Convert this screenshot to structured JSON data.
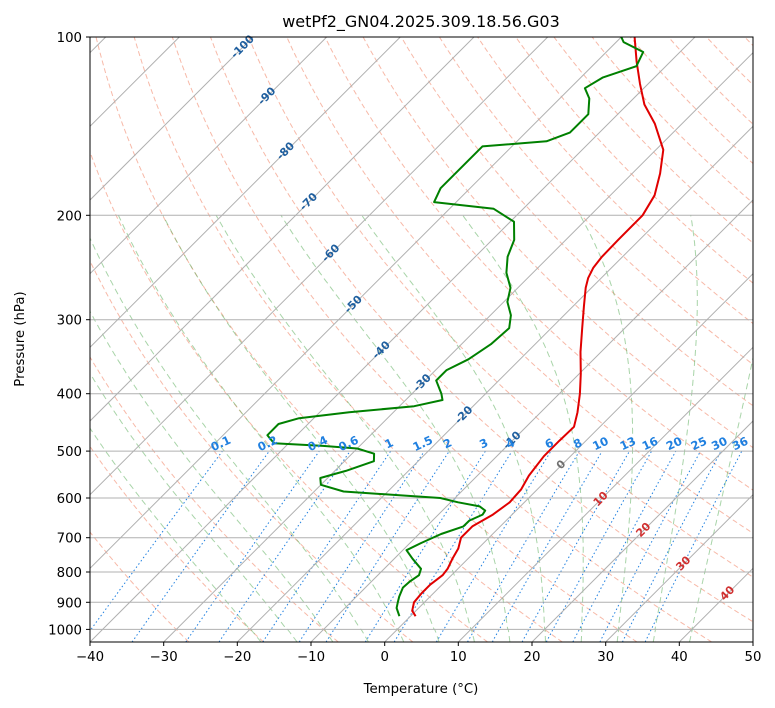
{
  "chart_data": {
    "type": "line",
    "subtype": "skew-T log-P diagram",
    "title": "wetPf2_GN04.2025.309.18.56.G03",
    "xlabel": "Temperature (°C)",
    "ylabel": "Pressure (hPa)",
    "xlim": [
      -40,
      50
    ],
    "ylim": [
      1050,
      100
    ],
    "y_scale": "log",
    "x_ticks": [
      -40,
      -30,
      -20,
      -10,
      0,
      10,
      20,
      30,
      40,
      50
    ],
    "y_ticks": [
      100,
      200,
      300,
      400,
      500,
      600,
      700,
      800,
      900,
      1000
    ],
    "grid": true,
    "legend": "none",
    "colors": {
      "temperature": "#e00000",
      "dewpoint": "#008000",
      "dry_adiabat": "#f08060",
      "moist_adiabat": "#60b060",
      "mixing_ratio": "#2080e0",
      "isotherm": "#808080",
      "grid": "#b0b0b0",
      "isotherm_label_neg": "#1f5f9f",
      "isotherm_label_pos": "#d03030",
      "isotherm_label_zero": "#707070"
    },
    "series": [
      {
        "label": "temperature",
        "points": [
          {
            "p": 950,
            "t": 0.7
          },
          {
            "p": 930,
            "t": -0.5
          },
          {
            "p": 900,
            "t": -1.4
          },
          {
            "p": 870,
            "t": -1.6
          },
          {
            "p": 840,
            "t": -1.6
          },
          {
            "p": 810,
            "t": -1.2
          },
          {
            "p": 790,
            "t": -1.4
          },
          {
            "p": 760,
            "t": -2.1
          },
          {
            "p": 730,
            "t": -2.7
          },
          {
            "p": 700,
            "t": -3.8
          },
          {
            "p": 670,
            "t": -3.8
          },
          {
            "p": 640,
            "t": -2.6
          },
          {
            "p": 610,
            "t": -2.0
          },
          {
            "p": 580,
            "t": -2.2
          },
          {
            "p": 550,
            "t": -3.0
          },
          {
            "p": 510,
            "t": -3.6
          },
          {
            "p": 480,
            "t": -3.6
          },
          {
            "p": 455,
            "t": -3.5
          },
          {
            "p": 430,
            "t": -5.0
          },
          {
            "p": 400,
            "t": -7.2
          },
          {
            "p": 370,
            "t": -9.8
          },
          {
            "p": 340,
            "t": -12.8
          },
          {
            "p": 310,
            "t": -15.8
          },
          {
            "p": 285,
            "t": -18.5
          },
          {
            "p": 265,
            "t": -20.8
          },
          {
            "p": 255,
            "t": -21.8
          },
          {
            "p": 245,
            "t": -22.5
          },
          {
            "p": 235,
            "t": -22.8
          },
          {
            "p": 220,
            "t": -22.9
          },
          {
            "p": 200,
            "t": -22.9
          },
          {
            "p": 185,
            "t": -24.0
          },
          {
            "p": 170,
            "t": -26.2
          },
          {
            "p": 155,
            "t": -29.0
          },
          {
            "p": 140,
            "t": -33.7
          },
          {
            "p": 130,
            "t": -37.7
          },
          {
            "p": 120,
            "t": -41.1
          },
          {
            "p": 110,
            "t": -44.6
          },
          {
            "p": 100,
            "t": -48.2
          }
        ]
      },
      {
        "label": "dewpoint",
        "points": [
          {
            "p": 950,
            "t": -1.5
          },
          {
            "p": 920,
            "t": -3.0
          },
          {
            "p": 900,
            "t": -3.6
          },
          {
            "p": 880,
            "t": -4.2
          },
          {
            "p": 850,
            "t": -4.9
          },
          {
            "p": 830,
            "t": -4.8
          },
          {
            "p": 810,
            "t": -4.4
          },
          {
            "p": 790,
            "t": -5.0
          },
          {
            "p": 760,
            "t": -7.5
          },
          {
            "p": 735,
            "t": -9.5
          },
          {
            "p": 715,
            "t": -8.5
          },
          {
            "p": 690,
            "t": -7.0
          },
          {
            "p": 670,
            "t": -5.0
          },
          {
            "p": 655,
            "t": -5.0
          },
          {
            "p": 640,
            "t": -4.0
          },
          {
            "p": 630,
            "t": -4.2
          },
          {
            "p": 620,
            "t": -5.5
          },
          {
            "p": 610,
            "t": -9.0
          },
          {
            "p": 600,
            "t": -12.0
          },
          {
            "p": 585,
            "t": -26.0
          },
          {
            "p": 570,
            "t": -30.0
          },
          {
            "p": 555,
            "t": -31.0
          },
          {
            "p": 540,
            "t": -28.5
          },
          {
            "p": 520,
            "t": -26.0
          },
          {
            "p": 505,
            "t": -27.0
          },
          {
            "p": 495,
            "t": -30.0
          },
          {
            "p": 490,
            "t": -35.0
          },
          {
            "p": 485,
            "t": -42.0
          },
          {
            "p": 470,
            "t": -44.0
          },
          {
            "p": 450,
            "t": -44.0
          },
          {
            "p": 440,
            "t": -42.0
          },
          {
            "p": 430,
            "t": -36.0
          },
          {
            "p": 420,
            "t": -28.0
          },
          {
            "p": 410,
            "t": -25.0
          },
          {
            "p": 400,
            "t": -26.0
          },
          {
            "p": 380,
            "t": -28.5
          },
          {
            "p": 365,
            "t": -28.5
          },
          {
            "p": 350,
            "t": -27.0
          },
          {
            "p": 330,
            "t": -26.0
          },
          {
            "p": 310,
            "t": -25.7
          },
          {
            "p": 295,
            "t": -27.2
          },
          {
            "p": 280,
            "t": -29.5
          },
          {
            "p": 265,
            "t": -31.0
          },
          {
            "p": 250,
            "t": -33.6
          },
          {
            "p": 235,
            "t": -35.6
          },
          {
            "p": 220,
            "t": -37.0
          },
          {
            "p": 205,
            "t": -39.5
          },
          {
            "p": 195,
            "t": -44.0
          },
          {
            "p": 190,
            "t": -53.0
          },
          {
            "p": 180,
            "t": -54.0
          },
          {
            "p": 165,
            "t": -54.0
          },
          {
            "p": 153,
            "t": -54.0
          },
          {
            "p": 150,
            "t": -46.0
          },
          {
            "p": 145,
            "t": -44.0
          },
          {
            "p": 135,
            "t": -44.0
          },
          {
            "p": 127,
            "t": -46.0
          },
          {
            "p": 122,
            "t": -48.0
          },
          {
            "p": 117,
            "t": -47.0
          },
          {
            "p": 112,
            "t": -44.0
          },
          {
            "p": 106,
            "t": -45.0
          },
          {
            "p": 102,
            "t": -49.0
          },
          {
            "p": 100,
            "t": -50.0
          }
        ]
      }
    ],
    "isotherm_labels": [
      {
        "t": -100,
        "p": 104
      },
      {
        "t": -90,
        "p": 126
      },
      {
        "t": -80,
        "p": 156
      },
      {
        "t": -70,
        "p": 190
      },
      {
        "t": -60,
        "p": 232
      },
      {
        "t": -50,
        "p": 283
      },
      {
        "t": -40,
        "p": 338
      },
      {
        "t": -30,
        "p": 384
      },
      {
        "t": -20,
        "p": 435
      },
      {
        "t": -10,
        "p": 480
      },
      {
        "t": 0,
        "p": 528
      },
      {
        "t": 10,
        "p": 603
      },
      {
        "t": 20,
        "p": 680
      },
      {
        "t": 30,
        "p": 775
      },
      {
        "t": 40,
        "p": 870
      }
    ],
    "mixing_ratio_labels": [
      "0.1",
      "0.2",
      "0.4",
      "0.6",
      "1",
      "1.5",
      "2",
      "3",
      "4",
      "6",
      "8",
      "10",
      "13",
      "16",
      "20",
      "25",
      "30",
      "36"
    ],
    "mixing_ratio_values": [
      0.1,
      0.2,
      0.4,
      0.6,
      1,
      1.5,
      2,
      3,
      4,
      6,
      8,
      10,
      13,
      16,
      20,
      25,
      30,
      36
    ],
    "mixing_ratio_label_pressure": 500
  }
}
